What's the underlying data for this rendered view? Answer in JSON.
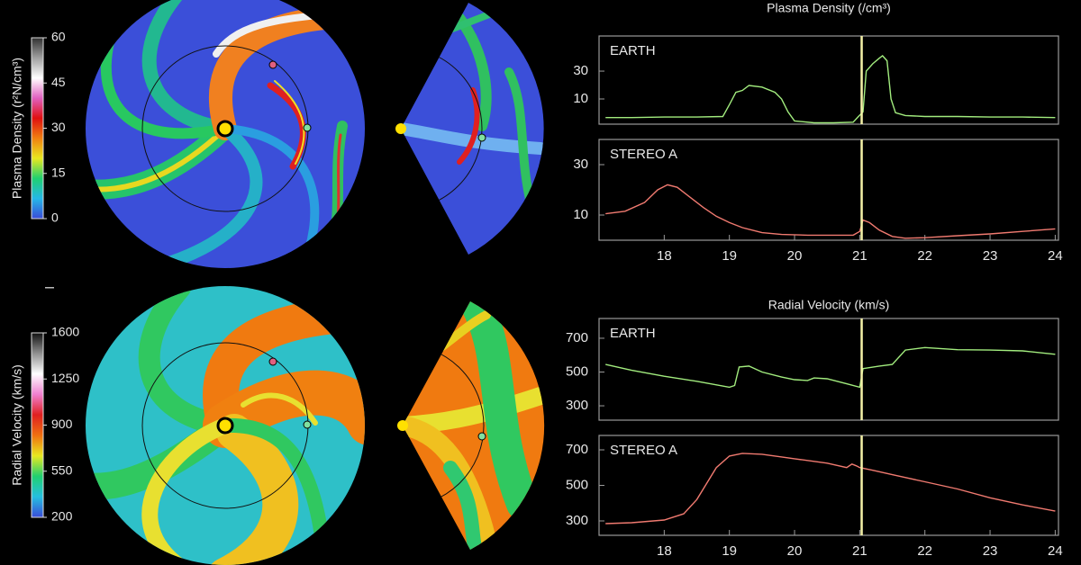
{
  "chart_data": [
    {
      "type": "colorbar",
      "label": "Plasma Density (r²N/cm³)",
      "ylim": [
        0,
        60
      ],
      "yticks": [
        0,
        15,
        30,
        45,
        60
      ],
      "colors": [
        "#3a4cd8",
        "#25b8e8",
        "#20d070",
        "#e8e820",
        "#f08010",
        "#e01010",
        "#e060c0",
        "#ffffff",
        "#a0a0a0",
        "#303030"
      ]
    },
    {
      "type": "colorbar",
      "label": "Radial Velocity (km/s)",
      "ylim": [
        200,
        1600
      ],
      "yticks": [
        200,
        550,
        900,
        1250,
        1600
      ],
      "colors": [
        "#3a4cd8",
        "#25c0e0",
        "#20d070",
        "#e8e820",
        "#f07010",
        "#e02020",
        "#f080d0",
        "#ffffff",
        "#909090",
        "#101010"
      ]
    },
    {
      "type": "line",
      "title": "Plasma Density (/cm³)",
      "log": true,
      "xlim": [
        17.0,
        24.05
      ],
      "ylim": [
        3.7,
        120
      ],
      "yticks": [
        10,
        30
      ],
      "marker_x": 21.03,
      "marker_color": "#f5f2a8",
      "x": [
        17.1,
        17.5,
        18.0,
        18.5,
        18.9,
        19.0,
        19.1,
        19.2,
        19.3,
        19.5,
        19.7,
        19.8,
        19.9,
        20.0,
        20.3,
        20.6,
        20.9,
        20.98,
        21.05,
        21.1,
        21.2,
        21.3,
        21.35,
        21.42,
        21.48,
        21.55,
        21.7,
        22.0,
        22.5,
        23.0,
        23.5,
        24.0
      ],
      "series": [
        {
          "name": "EARTH",
          "color": "#a2ec7e",
          "values": [
            4.8,
            4.8,
            4.9,
            4.9,
            5.0,
            8,
            13,
            14,
            17,
            16,
            13,
            10,
            6,
            4.2,
            3.9,
            3.9,
            4.0,
            5,
            6,
            30,
            40,
            50,
            55,
            45,
            10,
            5.8,
            5.2,
            5.0,
            5.0,
            4.9,
            4.9,
            4.8
          ]
        }
      ]
    },
    {
      "type": "line",
      "xlim": [
        17.0,
        24.05
      ],
      "ylim": [
        0,
        40
      ],
      "yticks": [
        10,
        30
      ],
      "xticks": [
        18,
        19,
        20,
        21,
        22,
        23,
        24
      ],
      "marker_x": 21.03,
      "marker_color": "#f5f2a8",
      "x": [
        17.1,
        17.4,
        17.7,
        17.9,
        18.05,
        18.2,
        18.4,
        18.6,
        18.8,
        19.0,
        19.2,
        19.5,
        19.8,
        20.2,
        20.6,
        20.9,
        21.0,
        21.05,
        21.15,
        21.3,
        21.5,
        21.7,
        22.0,
        22.5,
        23.0,
        23.5,
        24.0
      ],
      "series": [
        {
          "name": "STEREO A",
          "color": "#f07a70",
          "values": [
            10.5,
            11.5,
            15,
            20,
            22,
            21,
            17,
            13,
            9.5,
            7,
            5,
            3,
            2.3,
            2,
            2,
            2,
            3.5,
            8,
            7,
            4,
            1.5,
            0.8,
            1,
            1.8,
            2.5,
            3.5,
            4.5
          ]
        }
      ]
    },
    {
      "type": "line",
      "title": "Radial Velocity (km/s)",
      "xlim": [
        17.0,
        24.05
      ],
      "ylim": [
        215,
        817
      ],
      "yticks": [
        300,
        500,
        700
      ],
      "marker_x": 21.03,
      "marker_color": "#f5f2a8",
      "x": [
        17.1,
        17.5,
        18.0,
        18.5,
        19.0,
        19.08,
        19.15,
        19.3,
        19.5,
        19.8,
        20.0,
        20.2,
        20.3,
        20.5,
        20.8,
        21.0,
        21.05,
        21.3,
        21.5,
        21.7,
        22.0,
        22.5,
        23.0,
        23.5,
        24.0
      ],
      "series": [
        {
          "name": "EARTH",
          "color": "#a2ec7e",
          "values": [
            545,
            510,
            475,
            445,
            410,
            420,
            530,
            535,
            500,
            470,
            455,
            450,
            465,
            460,
            430,
            410,
            520,
            535,
            545,
            630,
            645,
            632,
            630,
            625,
            605
          ]
        }
      ]
    },
    {
      "type": "line",
      "xlim": [
        17.0,
        24.05
      ],
      "ylim": [
        219,
        781
      ],
      "yticks": [
        300,
        500,
        700
      ],
      "xticks": [
        18,
        19,
        20,
        21,
        22,
        23,
        24
      ],
      "marker_x": 21.03,
      "marker_color": "#f5f2a8",
      "x": [
        17.1,
        17.5,
        18.0,
        18.3,
        18.5,
        18.8,
        19.0,
        19.2,
        19.5,
        20.0,
        20.5,
        20.8,
        20.88,
        20.95,
        21.0,
        21.2,
        21.5,
        22.0,
        22.5,
        23.0,
        23.5,
        24.0
      ],
      "series": [
        {
          "name": "STEREO A",
          "color": "#f07a70",
          "values": [
            285,
            290,
            305,
            340,
            420,
            600,
            665,
            680,
            675,
            650,
            625,
            600,
            620,
            610,
            600,
            585,
            560,
            520,
            480,
            430,
            390,
            355
          ]
        }
      ]
    }
  ]
}
